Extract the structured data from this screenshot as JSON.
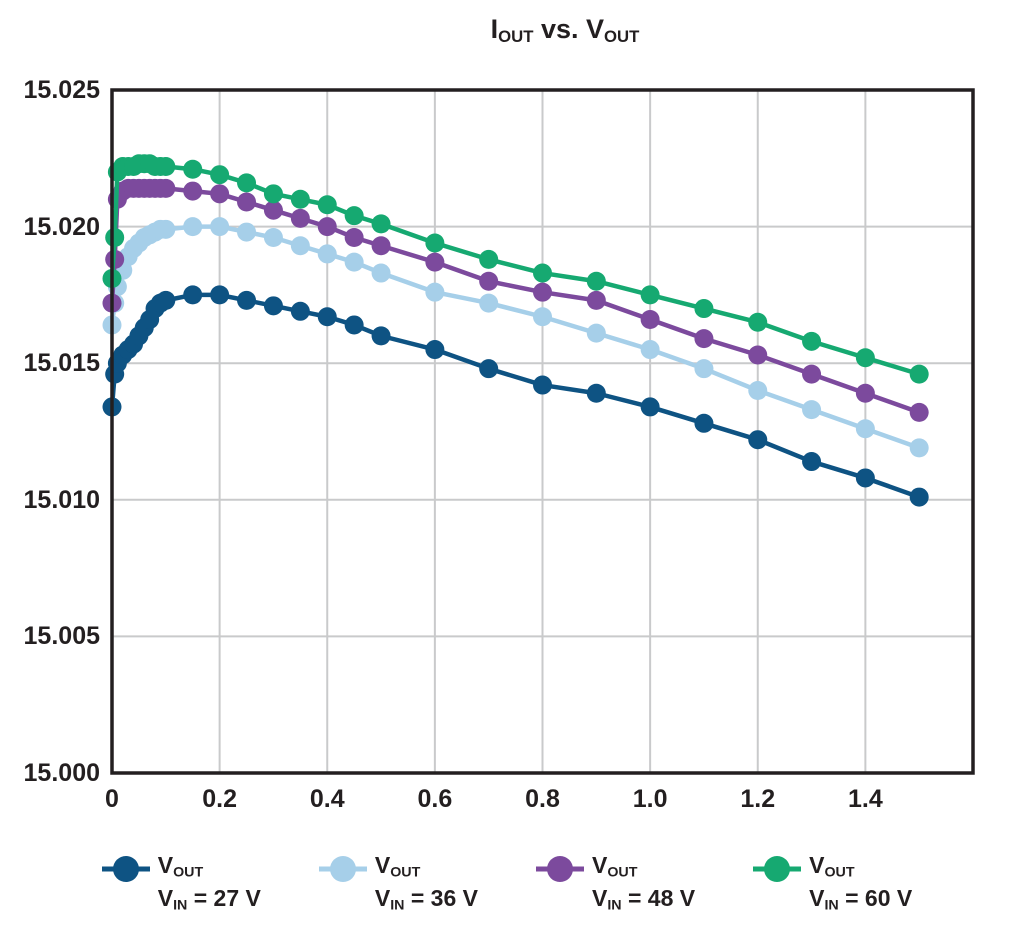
{
  "title_parts": {
    "p1": "I",
    "s1": "OUT",
    "p2": " vs. V",
    "s2": "OUT"
  },
  "colors": {
    "vin27": "#0e5383",
    "vin36": "#a6cfe9",
    "vin48": "#7c4a9d",
    "vin60": "#16a971",
    "grid": "#c9cacb",
    "frame": "#231f20",
    "text": "#231f20"
  },
  "chart_data": {
    "type": "line",
    "title": "IOUT vs. VOUT",
    "xlabel": "",
    "ylabel": "",
    "xlim": [
      0,
      1.6
    ],
    "ylim": [
      15.0,
      15.025
    ],
    "grid": true,
    "legend_position": "bottom",
    "x_ticks": [
      0,
      0.2,
      0.4,
      0.6,
      0.8,
      1.0,
      1.2,
      1.4
    ],
    "x_tick_labels": [
      "0",
      "0.2",
      "0.4",
      "0.6",
      "0.8",
      "1.0",
      "1.2",
      "1.4"
    ],
    "y_ticks": [
      15.0,
      15.005,
      15.01,
      15.015,
      15.02,
      15.025
    ],
    "y_tick_labels": [
      "15.000",
      "15.005",
      "15.010",
      "15.015",
      "15.020",
      "15.025"
    ],
    "x": [
      0,
      0.005,
      0.01,
      0.02,
      0.03,
      0.04,
      0.05,
      0.06,
      0.07,
      0.08,
      0.09,
      0.1,
      0.15,
      0.2,
      0.25,
      0.3,
      0.35,
      0.4,
      0.45,
      0.5,
      0.6,
      0.7,
      0.8,
      0.9,
      1.0,
      1.1,
      1.2,
      1.3,
      1.4,
      1.5
    ],
    "series": [
      {
        "name": "VOUT VIN = 27 V",
        "color": "#0e5383",
        "values": [
          15.0134,
          15.0146,
          15.015,
          15.0153,
          15.0155,
          15.0157,
          15.016,
          15.0163,
          15.0166,
          15.017,
          15.0172,
          15.0173,
          15.0175,
          15.0175,
          15.0173,
          15.0171,
          15.0169,
          15.0167,
          15.0164,
          15.016,
          15.0155,
          15.0148,
          15.0142,
          15.0139,
          15.0134,
          15.0128,
          15.0122,
          15.0114,
          15.0108,
          15.0101
        ]
      },
      {
        "name": "VOUT VIN = 36 V",
        "color": "#a6cfe9",
        "values": [
          15.0164,
          15.0172,
          15.0178,
          15.0184,
          15.0189,
          15.0192,
          15.0194,
          15.0196,
          15.0197,
          15.0198,
          15.0199,
          15.0199,
          15.02,
          15.02,
          15.0198,
          15.0196,
          15.0193,
          15.019,
          15.0187,
          15.0183,
          15.0176,
          15.0172,
          15.0167,
          15.0161,
          15.0155,
          15.0148,
          15.014,
          15.0133,
          15.0126,
          15.0119
        ]
      },
      {
        "name": "VOUT VIN = 48 V",
        "color": "#7c4a9d",
        "values": [
          15.0172,
          15.0188,
          15.021,
          15.0213,
          15.0214,
          15.0214,
          15.0214,
          15.0214,
          15.0214,
          15.0214,
          15.0214,
          15.0214,
          15.0213,
          15.0212,
          15.0209,
          15.0206,
          15.0203,
          15.02,
          15.0196,
          15.0193,
          15.0187,
          15.018,
          15.0176,
          15.0173,
          15.0166,
          15.0159,
          15.0153,
          15.0146,
          15.0139,
          15.0132
        ]
      },
      {
        "name": "VOUT VIN = 60 V",
        "color": "#16a971",
        "values": [
          15.0181,
          15.0196,
          15.022,
          15.0222,
          15.0222,
          15.0222,
          15.0223,
          15.0223,
          15.0223,
          15.0222,
          15.0222,
          15.0222,
          15.0221,
          15.0219,
          15.0216,
          15.0212,
          15.021,
          15.0208,
          15.0204,
          15.0201,
          15.0194,
          15.0188,
          15.0183,
          15.018,
          15.0175,
          15.017,
          15.0165,
          15.0158,
          15.0152,
          15.0146
        ]
      }
    ]
  },
  "legend": {
    "items": [
      {
        "label_base": "V",
        "label_sub": "OUT",
        "cond_base": "V",
        "cond_sub": "IN",
        "cond_rest": " = 27 V",
        "color": "#0e5383"
      },
      {
        "label_base": "V",
        "label_sub": "OUT",
        "cond_base": "V",
        "cond_sub": "IN",
        "cond_rest": " = 36 V",
        "color": "#a6cfe9"
      },
      {
        "label_base": "V",
        "label_sub": "OUT",
        "cond_base": "V",
        "cond_sub": "IN",
        "cond_rest": " = 48 V",
        "color": "#7c4a9d"
      },
      {
        "label_base": "V",
        "label_sub": "OUT",
        "cond_base": "V",
        "cond_sub": "IN",
        "cond_rest": " = 60 V",
        "color": "#16a971"
      }
    ]
  }
}
